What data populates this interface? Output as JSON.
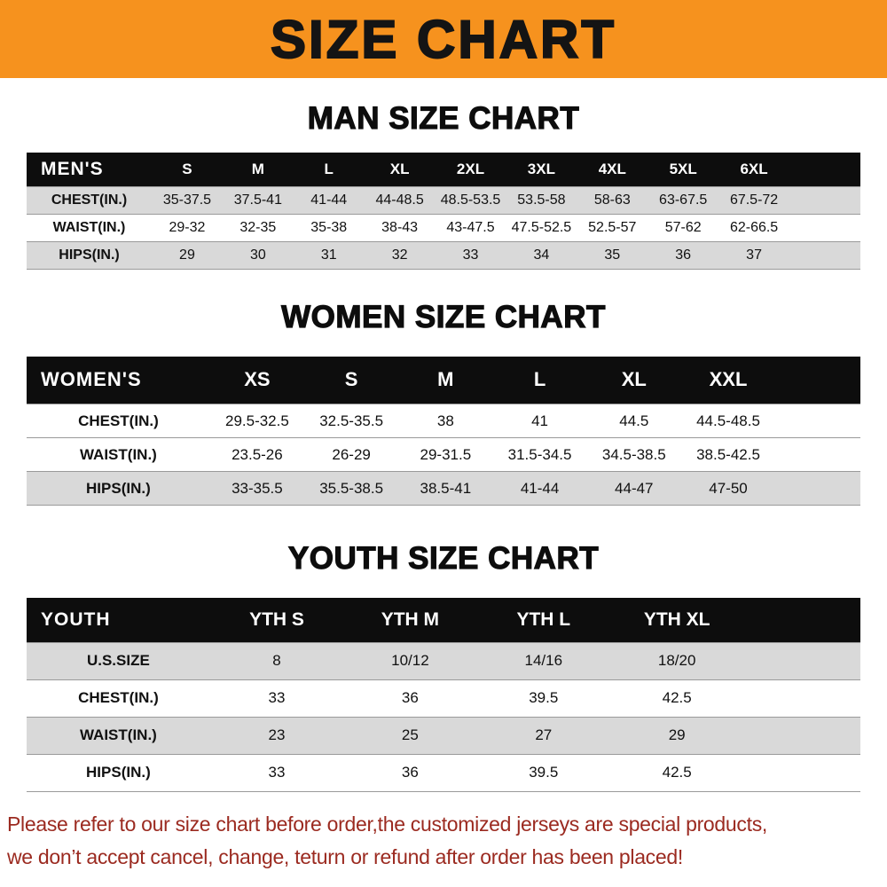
{
  "banner": {
    "title": "SIZE CHART",
    "bg_color": "#f6921e"
  },
  "sections": [
    {
      "heading": "MAN SIZE CHART",
      "header": [
        "MEN'S",
        "S",
        "M",
        "L",
        "XL",
        "2XL",
        "3XL",
        "4XL",
        "5XL",
        "6XL"
      ],
      "rows": [
        {
          "label": "CHEST(IN.)",
          "values": [
            "35-37.5",
            "37.5-41",
            "41-44",
            "44-48.5",
            "48.5-53.5",
            "53.5-58",
            "58-63",
            "63-67.5",
            "67.5-72"
          ]
        },
        {
          "label": "WAIST(IN.)",
          "values": [
            "29-32",
            "32-35",
            "35-38",
            "38-43",
            "43-47.5",
            "47.5-52.5",
            "52.5-57",
            "57-62",
            "62-66.5"
          ]
        },
        {
          "label": "HIPS(IN.)",
          "values": [
            "29",
            "30",
            "31",
            "32",
            "33",
            "34",
            "35",
            "36",
            "37"
          ]
        }
      ],
      "gray_rows": [
        0,
        2
      ]
    },
    {
      "heading": "WOMEN SIZE CHART",
      "header": [
        "WOMEN'S",
        "XS",
        "S",
        "M",
        "L",
        "XL",
        "XXL"
      ],
      "rows": [
        {
          "label": "CHEST(IN.)",
          "values": [
            "29.5-32.5",
            "32.5-35.5",
            "38",
            "41",
            "44.5",
            "44.5-48.5"
          ]
        },
        {
          "label": "WAIST(IN.)",
          "values": [
            "23.5-26",
            "26-29",
            "29-31.5",
            "31.5-34.5",
            "34.5-38.5",
            "38.5-42.5"
          ]
        },
        {
          "label": "HIPS(IN.)",
          "values": [
            "33-35.5",
            "35.5-38.5",
            "38.5-41",
            "41-44",
            "44-47",
            "47-50"
          ]
        }
      ],
      "gray_rows": [
        2
      ]
    },
    {
      "heading": "YOUTH SIZE CHART",
      "header": [
        "YOUTH",
        "YTH S",
        "YTH M",
        "YTH L",
        "YTH XL"
      ],
      "rows": [
        {
          "label": "U.S.SIZE",
          "values": [
            "8",
            "10/12",
            "14/16",
            "18/20"
          ]
        },
        {
          "label": "CHEST(IN.)",
          "values": [
            "33",
            "36",
            "39.5",
            "42.5"
          ]
        },
        {
          "label": "WAIST(IN.)",
          "values": [
            "23",
            "25",
            "27",
            "29"
          ]
        },
        {
          "label": "HIPS(IN.)",
          "values": [
            "33",
            "36",
            "39.5",
            "42.5"
          ]
        }
      ],
      "gray_rows": [
        0,
        2
      ]
    }
  ],
  "footer": {
    "line1": "Please refer to our size chart before order,the customized jerseys are special products,",
    "line2": "we don’t accept cancel, change, teturn or refund after order has been placed!",
    "text_color": "#9b2a20"
  }
}
